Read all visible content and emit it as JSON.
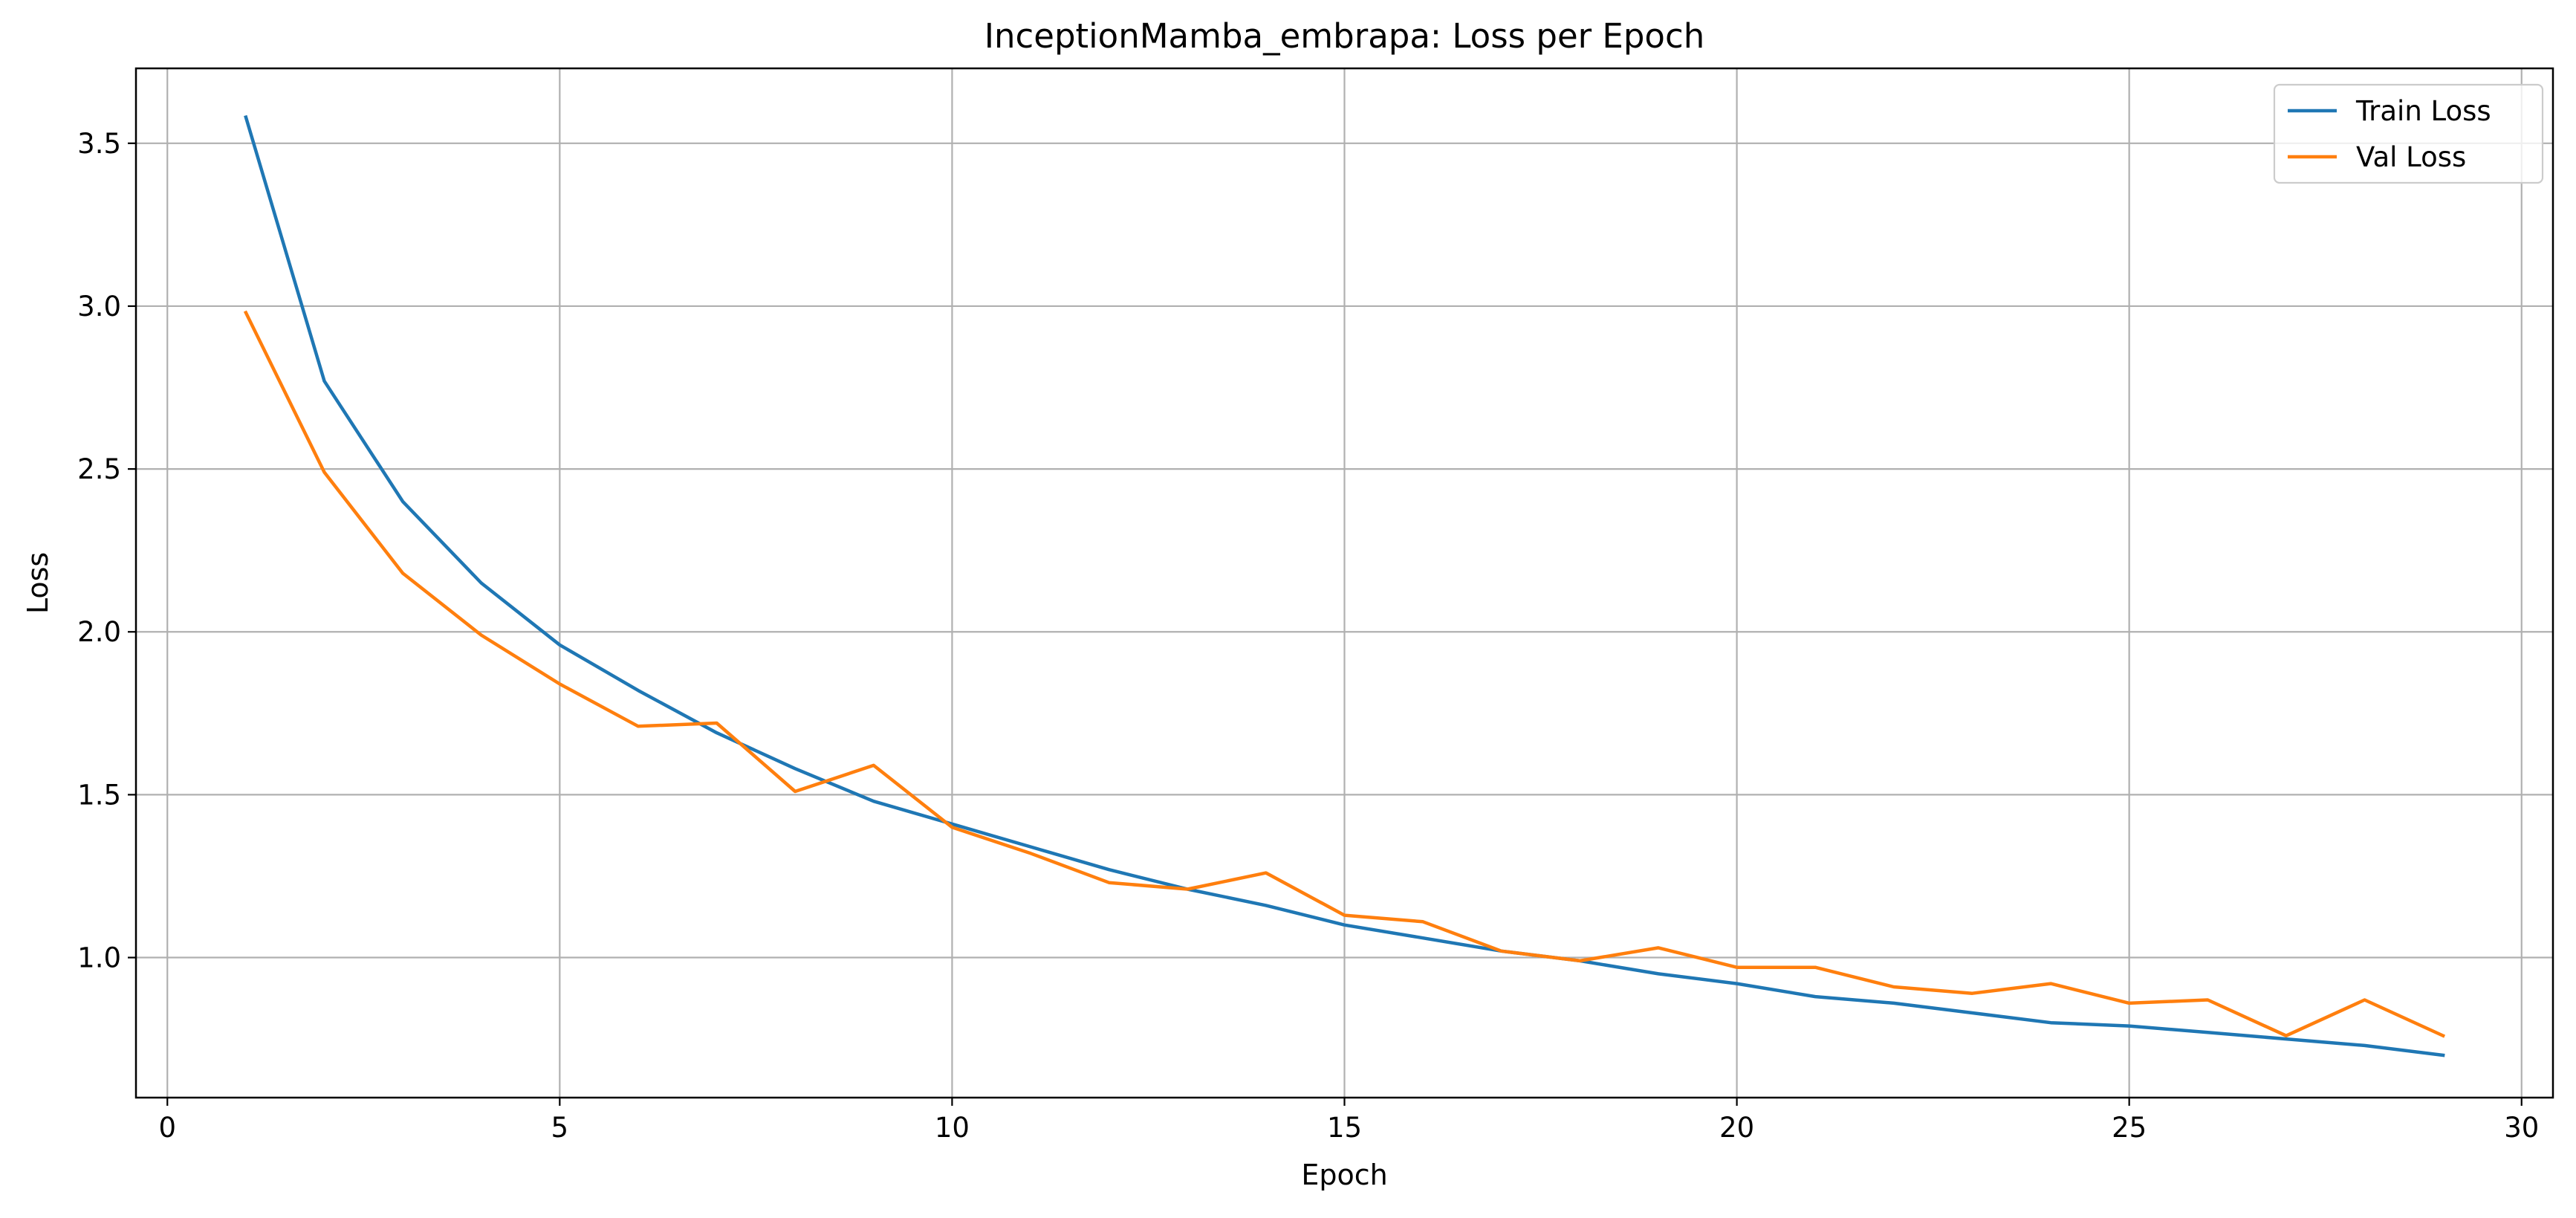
{
  "chart_data": {
    "type": "line",
    "title": "InceptionMamba_embrapa: Loss per Epoch",
    "xlabel": "Epoch",
    "ylabel": "Loss",
    "xlim": [
      -0.4,
      30.4
    ],
    "ylim": [
      0.57,
      3.73
    ],
    "xticks": [
      0,
      5,
      10,
      15,
      20,
      25,
      30
    ],
    "xtick_labels": [
      "0",
      "5",
      "10",
      "15",
      "20",
      "25",
      "30"
    ],
    "yticks": [
      1.0,
      1.5,
      2.0,
      2.5,
      3.0,
      3.5
    ],
    "ytick_labels": [
      "1.0",
      "1.5",
      "2.0",
      "2.5",
      "3.0",
      "3.5"
    ],
    "grid": true,
    "legend_position": "top-right",
    "x": [
      1,
      2,
      3,
      4,
      5,
      6,
      7,
      8,
      9,
      10,
      11,
      12,
      13,
      14,
      15,
      16,
      17,
      18,
      19,
      20,
      21,
      22,
      23,
      24,
      25,
      26,
      27,
      28,
      29
    ],
    "series": [
      {
        "name": "Train Loss",
        "color": "#1f77b4",
        "values": [
          3.58,
          2.77,
          2.4,
          2.15,
          1.96,
          1.82,
          1.69,
          1.58,
          1.48,
          1.41,
          1.34,
          1.27,
          1.21,
          1.16,
          1.1,
          1.06,
          1.02,
          0.99,
          0.95,
          0.92,
          0.88,
          0.86,
          0.83,
          0.8,
          0.79,
          0.77,
          0.75,
          0.73,
          0.7
        ]
      },
      {
        "name": "Val Loss",
        "color": "#ff7f0e",
        "values": [
          2.98,
          2.49,
          2.18,
          1.99,
          1.84,
          1.71,
          1.72,
          1.51,
          1.59,
          1.4,
          1.32,
          1.23,
          1.21,
          1.26,
          1.13,
          1.11,
          1.02,
          0.99,
          1.03,
          0.97,
          0.97,
          0.91,
          0.89,
          0.92,
          0.86,
          0.87,
          0.76,
          0.87,
          0.76
        ]
      }
    ]
  }
}
